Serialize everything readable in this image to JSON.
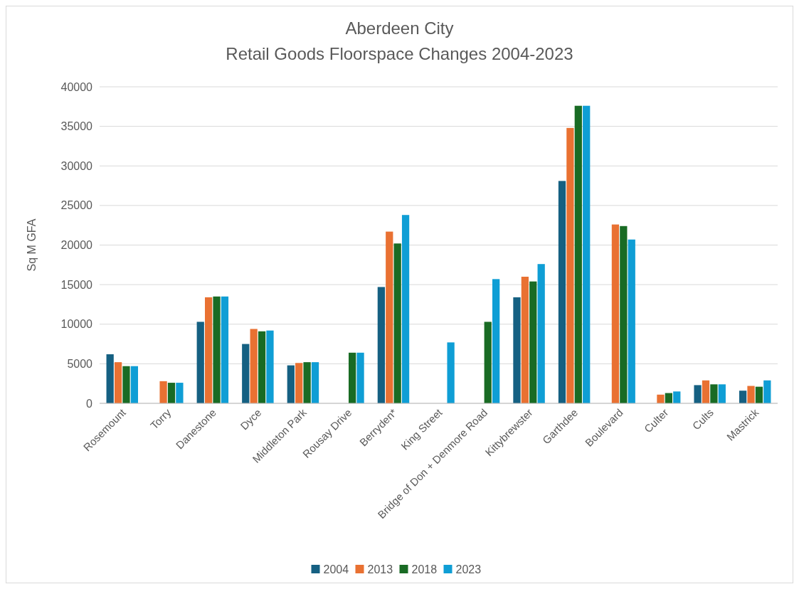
{
  "chart_data": {
    "type": "bar",
    "title": "Aberdeen City",
    "subtitle": "Retail Goods Floorspace Changes 2004-2023",
    "ylabel": "Sq M GFA",
    "categories": [
      "Rosemount",
      "Torry",
      "Danestone",
      "Dyce",
      "Middleton Park",
      "Rousay Drive",
      "Berryden*",
      "King Street",
      "Bridge of Don + Denmore Road",
      "Kittybrewster",
      "Garthdee",
      "Boulevard",
      "Culter",
      "Cults",
      "Mastrick"
    ],
    "series": [
      {
        "name": "2004",
        "color": "#156082",
        "values": [
          6200,
          null,
          10300,
          7500,
          4800,
          null,
          14700,
          null,
          null,
          13400,
          28100,
          null,
          null,
          2300,
          1600
        ]
      },
      {
        "name": "2013",
        "color": "#e97132",
        "values": [
          5200,
          2800,
          13400,
          9400,
          5100,
          null,
          21700,
          null,
          null,
          16000,
          34800,
          22600,
          1100,
          2900,
          2200
        ]
      },
      {
        "name": "2018",
        "color": "#196b24",
        "values": [
          4700,
          2600,
          13500,
          9100,
          5200,
          6400,
          20200,
          null,
          10300,
          15400,
          37600,
          22400,
          1300,
          2400,
          2100
        ]
      },
      {
        "name": "2023",
        "color": "#0f9ed5",
        "values": [
          4700,
          2600,
          13500,
          9200,
          5200,
          6400,
          23800,
          7700,
          15700,
          17600,
          37600,
          20700,
          1500,
          2400,
          2900
        ]
      }
    ],
    "ylim": [
      0,
      40000
    ],
    "yticks": [
      0,
      5000,
      10000,
      15000,
      20000,
      25000,
      30000,
      35000,
      40000
    ],
    "grid": "y",
    "legend": "bottom"
  }
}
